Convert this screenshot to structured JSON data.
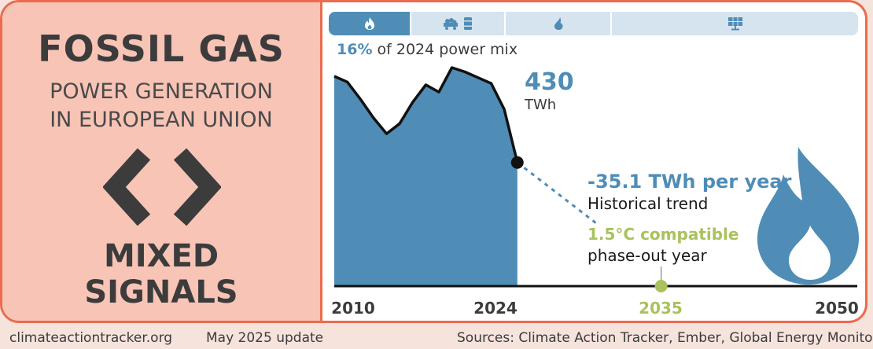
{
  "header": {
    "title": "FOSSIL GAS",
    "subtitle_lines": [
      "POWER GENERATION",
      "IN EUROPEAN UNION"
    ],
    "verdict_lines": [
      "MIXED",
      "SIGNALS"
    ],
    "signal_icon": "chevrons-apart-icon"
  },
  "tabs": [
    {
      "icon": "flame-icon",
      "active": true
    },
    {
      "icon": "coal-cart-icon",
      "active": false,
      "secondary_icon": "oil-barrel-icon"
    },
    {
      "icon": "water-drop-icon",
      "active": false
    },
    {
      "icon": "solar-panel-icon",
      "active": false
    }
  ],
  "share": {
    "percent": "16%",
    "text": "of 2024 power mix"
  },
  "chart_data": {
    "type": "area",
    "x": [
      2010,
      2011,
      2012,
      2013,
      2014,
      2015,
      2016,
      2017,
      2018,
      2019,
      2020,
      2021,
      2022,
      2023,
      2024
    ],
    "y": [
      730,
      710,
      650,
      585,
      530,
      565,
      640,
      700,
      675,
      760,
      745,
      725,
      705,
      615,
      430
    ],
    "xlim": [
      2010,
      2050
    ],
    "x_ticks": [
      {
        "value": 2010,
        "label": "2010"
      },
      {
        "value": 2024,
        "label": "2024"
      },
      {
        "value": 2035,
        "label": "2035"
      },
      {
        "value": 2050,
        "label": "2050"
      }
    ],
    "last_value": {
      "value": "430",
      "unit": "TWh"
    },
    "trend": {
      "from": [
        2024,
        430
      ],
      "to": [
        2030,
        220
      ],
      "style": "dashed",
      "rate": "-35.1 TWh per year",
      "label": "Historical trend"
    },
    "phaseout": {
      "year": 2035,
      "label_bold": "1.5°C compatible",
      "label": "phase-out year"
    },
    "colors": {
      "area": "#4f8db6",
      "line": "#111111",
      "phaseout": "#a9c25d",
      "text": "#3c3c3c"
    }
  },
  "footer": {
    "website": "climateactiontracker.org",
    "update": "May 2025 update",
    "sources": "Sources: Climate Action Tracker, Ember, Global Energy Monitor"
  },
  "colors": {
    "accent_orange": "#ec6b4f",
    "left_panel": "#f8c4b6",
    "blue": "#4f8db6",
    "green": "#a9c25d"
  }
}
